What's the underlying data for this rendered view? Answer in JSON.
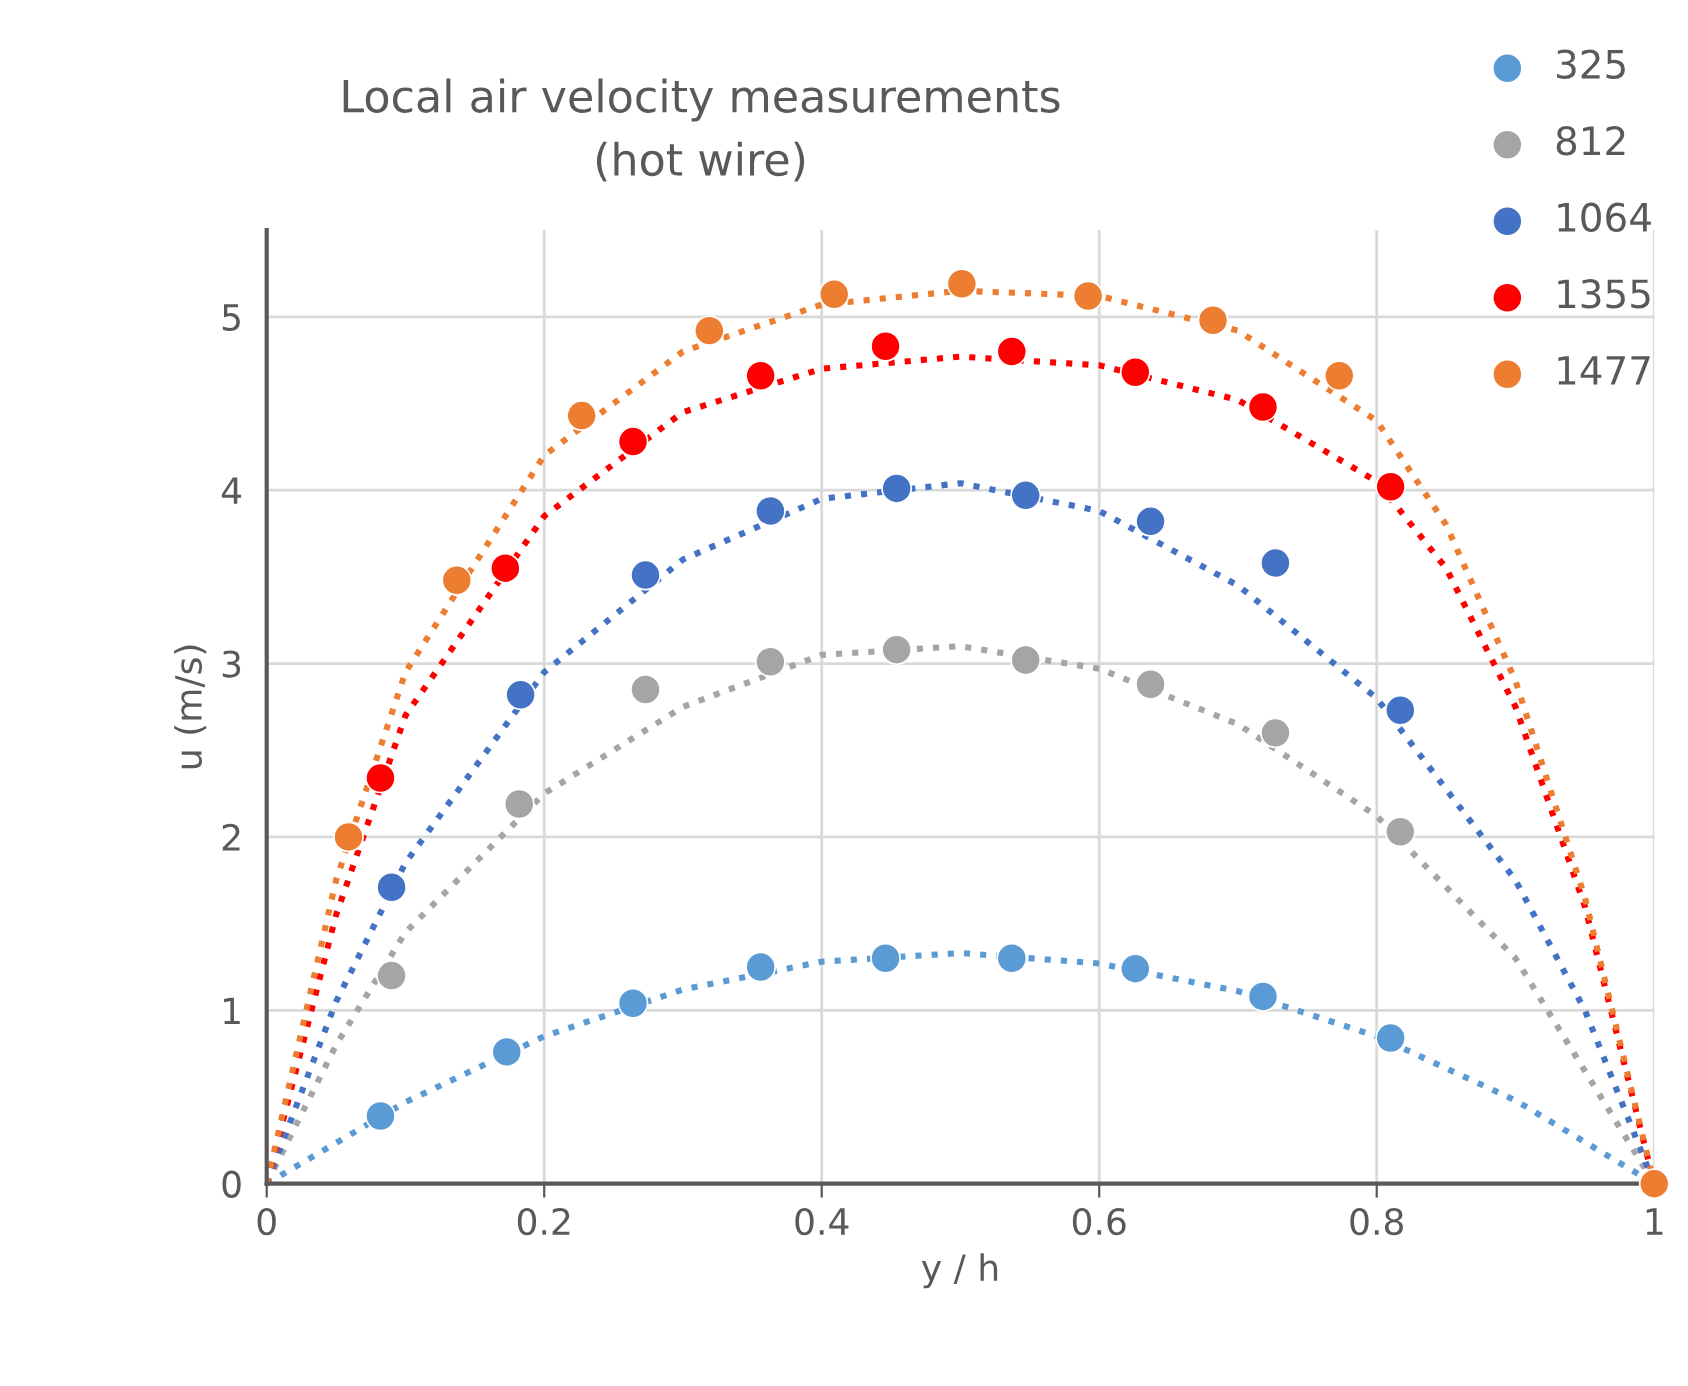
{
  "chart_data": {
    "type": "scatter",
    "title": "Local air velocity measurements\n(hot wire)",
    "xlabel": "y / h",
    "ylabel": "u (m/s)",
    "xlim": [
      0,
      1
    ],
    "xticks": [
      0,
      0.2,
      0.4,
      0.6,
      0.8,
      1
    ],
    "ylim": [
      0,
      5.5
    ],
    "yticks": [
      0,
      1,
      2,
      3,
      4,
      5
    ],
    "grid": true,
    "legend": "top right",
    "marker": "circle",
    "series": [
      {
        "name": "325",
        "color": "#5b9bd5",
        "x": [
          0.082,
          0.173,
          0.264,
          0.356,
          0.446,
          0.537,
          0.626,
          0.718,
          0.81
        ],
        "values": [
          0.39,
          0.76,
          1.04,
          1.25,
          1.3,
          1.3,
          1.24,
          1.08,
          0.84
        ]
      },
      {
        "name": "812",
        "color": "#a5a5a5",
        "x": [
          0.09,
          0.182,
          0.273,
          0.363,
          0.454,
          0.547,
          0.637,
          0.727,
          0.817
        ],
        "values": [
          1.2,
          2.19,
          2.85,
          3.01,
          3.08,
          3.02,
          2.88,
          2.6,
          2.03
        ]
      },
      {
        "name": "1064",
        "color": "#4472c4",
        "x": [
          0.09,
          0.183,
          0.273,
          0.363,
          0.454,
          0.547,
          0.637,
          0.727,
          0.817
        ],
        "values": [
          1.71,
          2.82,
          3.51,
          3.88,
          4.01,
          3.97,
          3.82,
          3.58,
          2.73
        ]
      },
      {
        "name": "1355",
        "color": "#ff0000",
        "x": [
          0.082,
          0.172,
          0.264,
          0.356,
          0.446,
          0.537,
          0.626,
          0.718,
          0.81
        ],
        "values": [
          2.34,
          3.55,
          4.28,
          4.66,
          4.83,
          4.8,
          4.68,
          4.48,
          4.02
        ]
      },
      {
        "name": "1477",
        "color": "#ed7d31",
        "x": [
          0.059,
          0.137,
          0.227,
          0.319,
          0.409,
          0.501,
          0.592,
          0.682,
          0.773,
          1.0
        ],
        "values": [
          2.0,
          3.48,
          4.43,
          4.92,
          5.13,
          5.19,
          5.12,
          4.98,
          4.66,
          0
        ]
      },
      {
        "type": "line",
        "marker": "none",
        "line_style": "dotted",
        "color": "#5b9bd5",
        "x": [
          0,
          0.1,
          0.2,
          0.3,
          0.4,
          0.5,
          0.6,
          0.7,
          0.8,
          0.9,
          1
        ],
        "values": [
          0,
          0.47,
          0.85,
          1.12,
          1.28,
          1.33,
          1.27,
          1.11,
          0.85,
          0.48,
          0
        ]
      },
      {
        "type": "line",
        "marker": "none",
        "line_style": "dotted",
        "color": "#a5a5a5",
        "x": [
          0,
          0.05,
          0.1,
          0.2,
          0.3,
          0.4,
          0.5,
          0.6,
          0.7,
          0.8,
          0.9,
          1
        ],
        "values": [
          0,
          0.8,
          1.45,
          2.25,
          2.75,
          3.05,
          3.1,
          2.97,
          2.65,
          2.12,
          1.3,
          0
        ]
      },
      {
        "type": "line",
        "marker": "none",
        "line_style": "dotted",
        "color": "#4472c4",
        "x": [
          0,
          0.05,
          0.1,
          0.2,
          0.3,
          0.4,
          0.5,
          0.6,
          0.7,
          0.8,
          0.9,
          0.95,
          1
        ],
        "values": [
          0,
          1.05,
          1.85,
          2.95,
          3.6,
          3.95,
          4.04,
          3.88,
          3.45,
          2.8,
          1.75,
          1.0,
          0
        ]
      },
      {
        "type": "line",
        "marker": "none",
        "line_style": "dotted",
        "color": "#ff0000",
        "x": [
          0,
          0.05,
          0.1,
          0.2,
          0.3,
          0.4,
          0.5,
          0.6,
          0.7,
          0.8,
          0.85,
          0.9,
          0.95,
          1
        ],
        "values": [
          0,
          1.55,
          2.7,
          3.85,
          4.45,
          4.7,
          4.77,
          4.72,
          4.52,
          4.05,
          3.55,
          2.75,
          1.6,
          0
        ]
      },
      {
        "type": "line",
        "marker": "none",
        "line_style": "dotted",
        "color": "#ed7d31",
        "x": [
          0,
          0.05,
          0.1,
          0.2,
          0.3,
          0.4,
          0.5,
          0.6,
          0.7,
          0.8,
          0.85,
          0.9,
          0.95,
          1
        ],
        "values": [
          0,
          1.75,
          2.95,
          4.2,
          4.8,
          5.07,
          5.15,
          5.12,
          4.92,
          4.4,
          3.8,
          2.9,
          1.65,
          0
        ]
      }
    ]
  }
}
